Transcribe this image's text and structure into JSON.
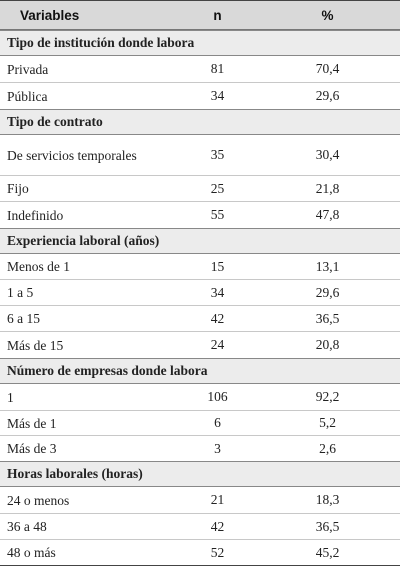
{
  "header": {
    "variables": "Variables",
    "n": "n",
    "pct": "%"
  },
  "sections": [
    {
      "title": "Tipo de institución donde labora",
      "rows": [
        {
          "label": "Privada",
          "n": "81",
          "pct": "70,4"
        },
        {
          "label": "Pública",
          "n": "34",
          "pct": "29,6"
        }
      ]
    },
    {
      "title": "Tipo de contrato",
      "rows": [
        {
          "label": "De servicios temporales",
          "n": "35",
          "pct": "30,4"
        },
        {
          "label": "Fijo",
          "n": "25",
          "pct": "21,8"
        },
        {
          "label": "Indefinido",
          "n": "55",
          "pct": "47,8"
        }
      ]
    },
    {
      "title": "Experiencia laboral (años)",
      "rows": [
        {
          "label": "Menos de 1",
          "n": "15",
          "pct": "13,1"
        },
        {
          "label": "1 a 5",
          "n": "34",
          "pct": "29,6"
        },
        {
          "label": "6 a 15",
          "n": "42",
          "pct": "36,5"
        },
        {
          "label": "Más de 15",
          "n": "24",
          "pct": "20,8"
        }
      ]
    },
    {
      "title": "Número de empresas donde labora",
      "rows": [
        {
          "label": "1",
          "n": "106",
          "pct": "92,2"
        },
        {
          "label": "Más de 1",
          "n": "6",
          "pct": "5,2"
        },
        {
          "label": "Más de 3",
          "n": "3",
          "pct": "2,6"
        }
      ]
    },
    {
      "title": "Horas laborales (horas)",
      "rows": [
        {
          "label": "24 o menos",
          "n": "21",
          "pct": "18,3"
        },
        {
          "label": "36 a 48",
          "n": "42",
          "pct": "36,5"
        },
        {
          "label": "48 o más",
          "n": "52",
          "pct": "45,2"
        }
      ]
    }
  ]
}
